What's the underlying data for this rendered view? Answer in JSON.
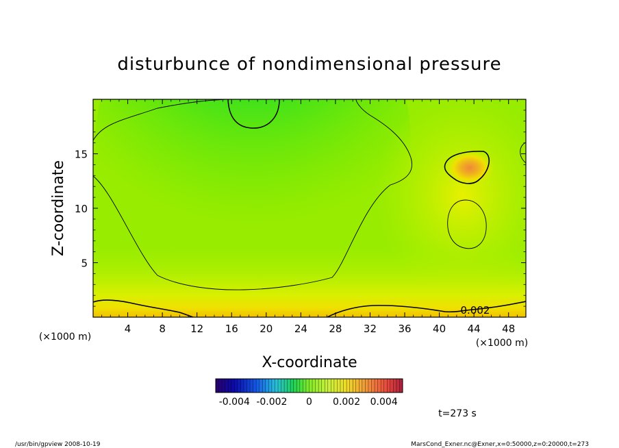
{
  "chart_data": {
    "type": "heatmap",
    "title": "disturbunce of nondimensional pressure",
    "xlabel": "X-coordinate",
    "ylabel": "Z-coordinate",
    "x_unit": "(×1000 m)",
    "y_unit": "(×1000 m)",
    "xlim": [
      0,
      50
    ],
    "ylim": [
      0,
      20
    ],
    "x_ticks": [
      4,
      8,
      12,
      16,
      20,
      24,
      28,
      32,
      36,
      40,
      44,
      48
    ],
    "y_ticks": [
      5,
      10,
      15
    ],
    "contour_label": "0.002",
    "colorbar": {
      "min": -0.005,
      "max": 0.005,
      "ticks": [
        -0.004,
        -0.002,
        0,
        0.002,
        0.004
      ],
      "tick_labels": [
        "-0.004",
        "-0.002",
        "0",
        "0.002",
        "0.004"
      ]
    },
    "features": [
      {
        "name": "low-top-center",
        "x": 18.5,
        "z": 20,
        "value": -0.0015
      },
      {
        "name": "high-core-right",
        "x": 43.5,
        "z": 13.7,
        "value": 0.0035
      },
      {
        "name": "high-bottom-layer",
        "x": 25,
        "z": 0,
        "value": 0.0025
      }
    ],
    "time_label": "t=273 s"
  },
  "footer": {
    "left": "/usr/bin/gpview  2008-10-19",
    "right": "MarsCond_Exner.nc@Exner,x=0:50000,z=0:20000,t=273"
  },
  "colors": {
    "negative_strong": "#00d020",
    "neutral": "#a0f000",
    "positive_weak": "#f0f000",
    "positive_strong": "#f09040"
  }
}
